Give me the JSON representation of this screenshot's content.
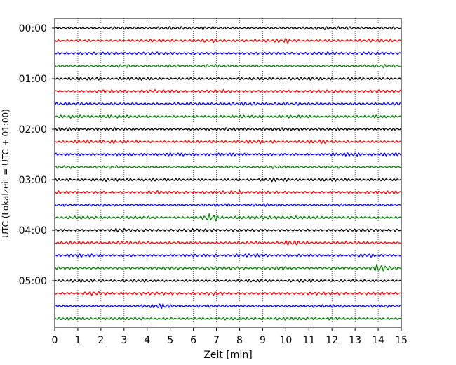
{
  "chart_data": {
    "type": "line",
    "title": "",
    "xlabel": "Zeit  [min]",
    "ylabel": "UTC (Lokalzeit = UTC + 01:00)",
    "xlim": [
      0,
      15
    ],
    "x_ticks": [
      0,
      1,
      2,
      3,
      4,
      5,
      6,
      7,
      8,
      9,
      10,
      11,
      12,
      13,
      14,
      15
    ],
    "y_tick_labels": [
      "00:00",
      "01:00",
      "02:00",
      "03:00",
      "04:00",
      "05:00"
    ],
    "grid": "vertical dotted",
    "trace_interval_minutes": 15,
    "trace_count": 24,
    "trace_colors": [
      "#000000",
      "#ff0000",
      "#0000ff",
      "#008000"
    ],
    "bursts": [
      {
        "trace": 0,
        "x": 6.5,
        "amp": 1.6
      },
      {
        "trace": 0,
        "x": 11.4,
        "amp": 1.5
      },
      {
        "trace": 1,
        "x": 10.0,
        "amp": 2.3
      },
      {
        "trace": 3,
        "x": 3.0,
        "amp": 1.4
      },
      {
        "trace": 5,
        "x": 7.3,
        "amp": 1.4
      },
      {
        "trace": 7,
        "x": 2.2,
        "amp": 1.4
      },
      {
        "trace": 7,
        "x": 14.0,
        "amp": 1.7
      },
      {
        "trace": 9,
        "x": 2.7,
        "amp": 1.6
      },
      {
        "trace": 9,
        "x": 11.6,
        "amp": 1.5
      },
      {
        "trace": 10,
        "x": 12.8,
        "amp": 1.4
      },
      {
        "trace": 12,
        "x": 9.5,
        "amp": 1.3
      },
      {
        "trace": 13,
        "x": 4.3,
        "amp": 1.5
      },
      {
        "trace": 13,
        "x": 8.0,
        "amp": 1.3
      },
      {
        "trace": 14,
        "x": 12.3,
        "amp": 1.3
      },
      {
        "trace": 15,
        "x": 6.8,
        "amp": 3.0
      },
      {
        "trace": 15,
        "x": 9.5,
        "amp": 1.5
      },
      {
        "trace": 16,
        "x": 2.8,
        "amp": 1.8
      },
      {
        "trace": 17,
        "x": 10.2,
        "amp": 1.6
      },
      {
        "trace": 18,
        "x": 13.4,
        "amp": 1.6
      },
      {
        "trace": 19,
        "x": 14.0,
        "amp": 2.2
      },
      {
        "trace": 19,
        "x": 9.8,
        "amp": 1.4
      },
      {
        "trace": 21,
        "x": 1.6,
        "amp": 1.6
      },
      {
        "trace": 21,
        "x": 7.0,
        "amp": 1.4
      },
      {
        "trace": 22,
        "x": 4.6,
        "amp": 1.6
      },
      {
        "trace": 23,
        "x": 12.0,
        "amp": 1.3
      }
    ]
  }
}
